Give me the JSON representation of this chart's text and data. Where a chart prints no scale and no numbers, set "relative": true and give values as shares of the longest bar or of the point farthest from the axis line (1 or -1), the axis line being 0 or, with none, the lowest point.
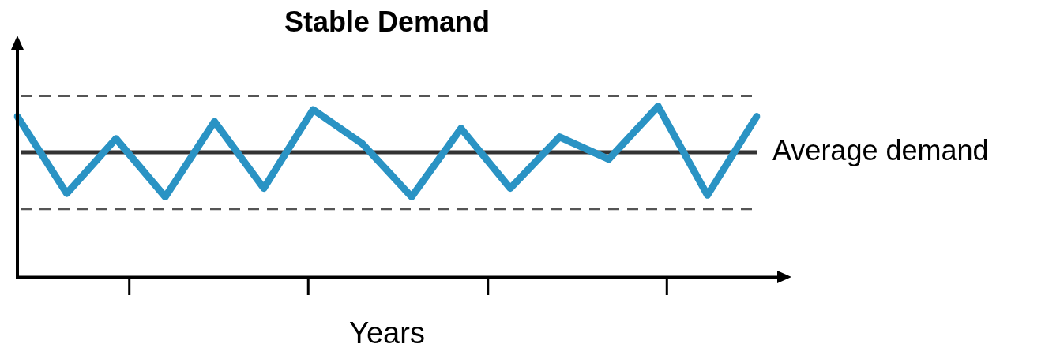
{
  "chart_data": {
    "type": "line",
    "title": "Stable Demand",
    "xlabel": "Years",
    "relative": true,
    "categories": [
      null,
      null,
      null,
      null,
      null,
      null,
      null,
      null,
      null,
      null,
      null,
      null,
      null,
      null,
      null,
      null
    ],
    "series": [
      {
        "color": "#2a93c4",
        "values": [
          0.94,
          0.49,
          0.81,
          0.47,
          0.91,
          0.52,
          0.98,
          0.78,
          0.47,
          0.87,
          0.52,
          0.82,
          0.69,
          1,
          0.48,
          0.94
        ]
      }
    ],
    "ref_lines": [
      {
        "axis": "y",
        "value": 0.73,
        "label": "Average demand",
        "color": "#333333",
        "line_style": "solid"
      },
      {
        "axis": "y",
        "value": 1.06,
        "color": "#555555",
        "line_style": "dashed"
      },
      {
        "axis": "y",
        "value": 0.4,
        "color": "#555555",
        "line_style": "dashed"
      }
    ],
    "legend": false,
    "marker": "none",
    "line_style": "solid"
  }
}
